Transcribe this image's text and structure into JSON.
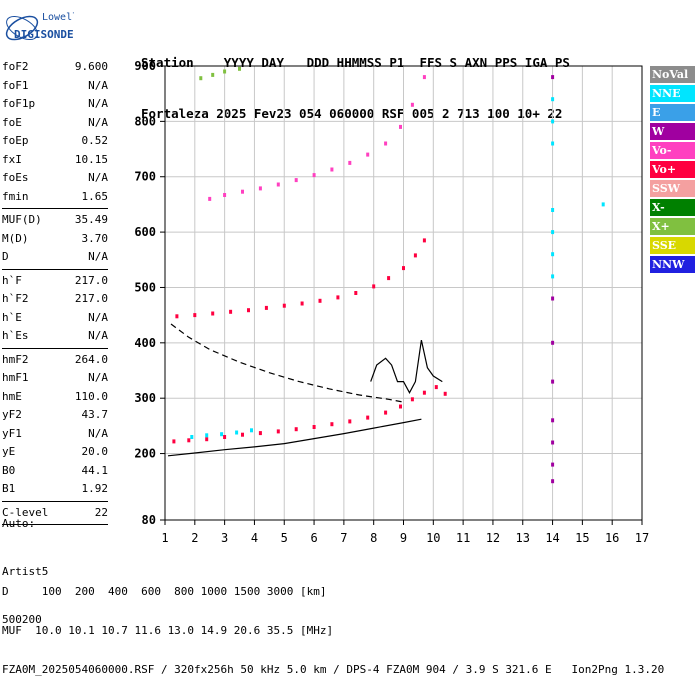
{
  "logo": {
    "line1": "Lowell",
    "line2": "DIGISONDE"
  },
  "header": {
    "line1": "Station    YYYY DAY   DDD HHMMSS P1  FFS S AXN PPS IGA PS",
    "line2": "Fortaleza 2025 Fev23 054 060000 RSF 005 2 713 100 10+ 22"
  },
  "params": [
    [
      {
        "k": "foF2",
        "v": "9.600"
      },
      {
        "k": "foF1",
        "v": "N/A"
      },
      {
        "k": "foF1p",
        "v": "N/A"
      },
      {
        "k": "foE",
        "v": "N/A"
      },
      {
        "k": "foEp",
        "v": "0.52"
      },
      {
        "k": "fxI",
        "v": "10.15"
      },
      {
        "k": "foEs",
        "v": "N/A"
      },
      {
        "k": "fmin",
        "v": "1.65"
      }
    ],
    [
      {
        "k": "MUF(D)",
        "v": "35.49"
      },
      {
        "k": "M(D)",
        "v": "3.70"
      },
      {
        "k": "D",
        "v": "N/A"
      }
    ],
    [
      {
        "k": "h`F",
        "v": "217.0"
      },
      {
        "k": "h`F2",
        "v": "217.0"
      },
      {
        "k": "h`E",
        "v": "N/A"
      },
      {
        "k": "h`Es",
        "v": "N/A"
      }
    ],
    [
      {
        "k": "hmF2",
        "v": "264.0"
      },
      {
        "k": "hmF1",
        "v": "N/A"
      },
      {
        "k": "hmE",
        "v": "110.0"
      },
      {
        "k": "yF2",
        "v": "43.7"
      },
      {
        "k": "yF1",
        "v": "N/A"
      },
      {
        "k": "yE",
        "v": "20.0"
      },
      {
        "k": "B0",
        "v": "44.1"
      },
      {
        "k": "B1",
        "v": "1.92"
      }
    ],
    [
      {
        "k": "C-level",
        "v": "22"
      }
    ]
  ],
  "auto": {
    "line1": "Auto:",
    "line2": "Artist5",
    "line3": "500200"
  },
  "legend": [
    {
      "label": "NoVal",
      "color": "#8c8c8c"
    },
    {
      "label": "NNE",
      "color": "#00e5ff"
    },
    {
      "label": "E",
      "color": "#3aa0e8"
    },
    {
      "label": "W",
      "color": "#a000a0"
    },
    {
      "label": "Vo-",
      "color": "#ff40c0"
    },
    {
      "label": "Vo+",
      "color": "#ff0040"
    },
    {
      "label": "SSW",
      "color": "#f4a0a0"
    },
    {
      "label": "X-",
      "color": "#008000"
    },
    {
      "label": "X+",
      "color": "#80c040"
    },
    {
      "label": "SSE",
      "color": "#d8d800"
    },
    {
      "label": "NNW",
      "color": "#2020e0"
    }
  ],
  "footer": {
    "line1": "D     100  200  400  600  800 1000 1500 3000 [km]",
    "line2": "MUF  10.0 10.1 10.7 11.6 13.0 14.9 20.6 35.5 [MHz]",
    "line3": "FZA0M_2025054060000.RSF / 320fx256h 50 kHz 5.0 km / DPS-4 FZA0M 904 / 3.9 S 321.6 E   Ion2Png 1.3.20"
  },
  "chart_data": {
    "type": "scatter",
    "title": "",
    "xlabel": "",
    "ylabel": "",
    "xlim": [
      1,
      17
    ],
    "ylim": [
      80,
      900
    ],
    "x_ticks": [
      1,
      2,
      3,
      4,
      5,
      6,
      7,
      8,
      9,
      10,
      11,
      12,
      13,
      14,
      15,
      16,
      17
    ],
    "y_ticks": [
      80,
      200,
      300,
      400,
      500,
      600,
      700,
      800,
      900
    ],
    "grid": true,
    "series": [
      {
        "color": "#ff0040",
        "points": [
          [
            1.3,
            222
          ],
          [
            1.8,
            224
          ],
          [
            2.4,
            226
          ],
          [
            3.0,
            230
          ],
          [
            3.6,
            234
          ],
          [
            4.2,
            237
          ],
          [
            4.8,
            240
          ],
          [
            5.4,
            244
          ],
          [
            6.0,
            248
          ],
          [
            6.6,
            253
          ],
          [
            7.2,
            258
          ],
          [
            7.8,
            265
          ],
          [
            8.4,
            274
          ],
          [
            8.9,
            285
          ],
          [
            9.3,
            298
          ],
          [
            9.7,
            310
          ],
          [
            10.1,
            320
          ],
          [
            10.4,
            308
          ]
        ]
      },
      {
        "color": "#ff0040",
        "points": [
          [
            1.4,
            448
          ],
          [
            2.0,
            450
          ],
          [
            2.6,
            453
          ],
          [
            3.2,
            456
          ],
          [
            3.8,
            459
          ],
          [
            4.4,
            463
          ],
          [
            5.0,
            467
          ],
          [
            5.6,
            471
          ],
          [
            6.2,
            476
          ],
          [
            6.8,
            482
          ],
          [
            7.4,
            490
          ],
          [
            8.0,
            502
          ],
          [
            8.5,
            517
          ],
          [
            9.0,
            535
          ],
          [
            9.4,
            558
          ],
          [
            9.7,
            585
          ]
        ]
      },
      {
        "color": "#ff40c0",
        "points": [
          [
            2.5,
            660
          ],
          [
            3.0,
            667
          ],
          [
            3.6,
            673
          ],
          [
            4.2,
            679
          ],
          [
            4.8,
            686
          ],
          [
            5.4,
            694
          ],
          [
            6.0,
            703
          ],
          [
            6.6,
            713
          ],
          [
            7.2,
            725
          ],
          [
            7.8,
            740
          ],
          [
            8.4,
            760
          ],
          [
            8.9,
            790
          ],
          [
            9.3,
            830
          ],
          [
            9.7,
            880
          ]
        ]
      },
      {
        "color": "#80c040",
        "points": [
          [
            2.2,
            878
          ],
          [
            2.6,
            884
          ],
          [
            3.0,
            890
          ],
          [
            3.5,
            895
          ]
        ]
      },
      {
        "color": "#00e5ff",
        "points": [
          [
            1.9,
            230
          ],
          [
            2.4,
            233
          ],
          [
            2.9,
            235
          ],
          [
            3.4,
            238
          ],
          [
            3.9,
            242
          ],
          [
            14.0,
            520
          ],
          [
            14.0,
            560
          ],
          [
            14.0,
            600
          ],
          [
            14.0,
            640
          ],
          [
            14.0,
            760
          ],
          [
            14.0,
            800
          ],
          [
            14.0,
            840
          ],
          [
            15.7,
            650
          ]
        ]
      },
      {
        "color": "#a000a0",
        "points": [
          [
            14.0,
            150
          ],
          [
            14.0,
            180
          ],
          [
            14.0,
            220
          ],
          [
            14.0,
            260
          ],
          [
            14.0,
            330
          ],
          [
            14.0,
            400
          ],
          [
            14.0,
            480
          ],
          [
            14.0,
            880
          ]
        ]
      }
    ],
    "lines": [
      {
        "style": "solid",
        "points": [
          [
            1.1,
            196
          ],
          [
            2.0,
            201
          ],
          [
            3.0,
            207
          ],
          [
            4.0,
            212
          ],
          [
            5.0,
            218
          ],
          [
            6.0,
            227
          ],
          [
            7.0,
            236
          ],
          [
            8.0,
            246
          ],
          [
            9.0,
            256
          ],
          [
            9.6,
            262
          ]
        ]
      },
      {
        "style": "dashed",
        "points": [
          [
            1.2,
            434
          ],
          [
            1.8,
            410
          ],
          [
            2.5,
            388
          ],
          [
            3.5,
            365
          ],
          [
            4.5,
            346
          ],
          [
            5.5,
            330
          ],
          [
            6.5,
            317
          ],
          [
            7.5,
            306
          ],
          [
            8.5,
            298
          ],
          [
            9.0,
            293
          ]
        ]
      },
      {
        "style": "solid",
        "points": [
          [
            7.9,
            330
          ],
          [
            8.1,
            360
          ],
          [
            8.4,
            372
          ],
          [
            8.6,
            360
          ],
          [
            8.8,
            330
          ],
          [
            9.0,
            330
          ],
          [
            9.2,
            310
          ],
          [
            9.4,
            330
          ],
          [
            9.6,
            405
          ],
          [
            9.8,
            355
          ],
          [
            10.0,
            340
          ],
          [
            10.3,
            330
          ]
        ]
      }
    ]
  }
}
